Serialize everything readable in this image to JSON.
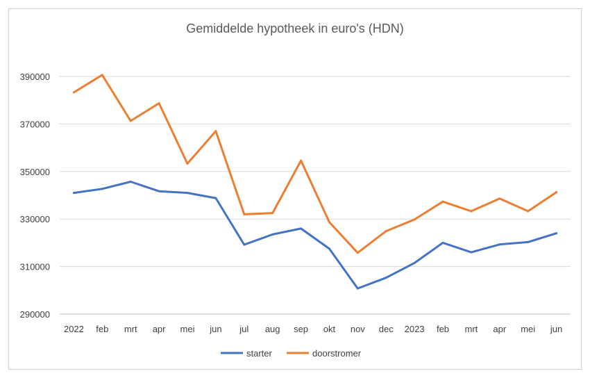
{
  "chart_data": {
    "type": "line",
    "title": "Gemiddelde hypotheek in euro's (HDN)",
    "xlabel": "",
    "ylabel": "",
    "categories": [
      "2022",
      "feb",
      "mrt",
      "apr",
      "mei",
      "jun",
      "jul",
      "aug",
      "sep",
      "okt",
      "nov",
      "dec",
      "2023",
      "feb",
      "mrt",
      "apr",
      "mei",
      "jun"
    ],
    "ylim": [
      290000,
      390000
    ],
    "yticks": [
      "290000",
      "310000",
      "330000",
      "350000",
      "370000",
      "390000"
    ],
    "grid": true,
    "legend_position": "bottom",
    "series": [
      {
        "name": "starter",
        "color": "#4472c4",
        "values": [
          341000,
          342700,
          345700,
          341700,
          341000,
          338800,
          319200,
          323500,
          326000,
          317500,
          300800,
          305300,
          311500,
          320000,
          316000,
          319300,
          320300,
          324000
        ]
      },
      {
        "name": "doorstromer",
        "color": "#ed7d31",
        "values": [
          383300,
          390600,
          371300,
          378700,
          353300,
          367000,
          332000,
          332500,
          354600,
          328700,
          315800,
          324900,
          329800,
          337300,
          333300,
          338600,
          333300,
          341300
        ]
      }
    ]
  }
}
